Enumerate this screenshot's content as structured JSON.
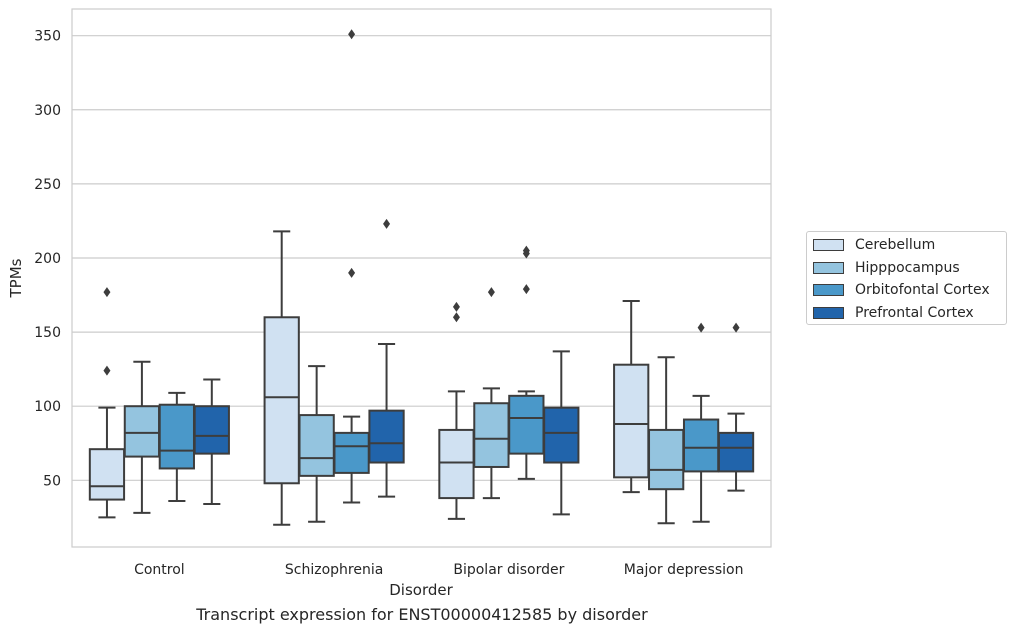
{
  "chart_data": {
    "type": "box",
    "title": "",
    "caption": "Transcript expression for ENST00000412585 by disorder",
    "xlabel": "Disorder",
    "ylabel": "TPMs",
    "ylim": [
      5,
      368
    ],
    "yticks": [
      50,
      100,
      150,
      200,
      250,
      300,
      350
    ],
    "grid": true,
    "legend_position": "right",
    "categories": [
      "Control",
      "Schizophrenia",
      "Bipolar disorder",
      "Major depression"
    ],
    "series": [
      {
        "name": "Cerebellum",
        "color": "#d0e1f2",
        "boxes": [
          {
            "whisker_low": 25,
            "q1": 37,
            "median": 46,
            "q3": 71,
            "whisker_high": 99,
            "outliers": [
              124,
              177
            ]
          },
          {
            "whisker_low": 20,
            "q1": 48,
            "median": 106,
            "q3": 160,
            "whisker_high": 218,
            "outliers": []
          },
          {
            "whisker_low": 24,
            "q1": 38,
            "median": 62,
            "q3": 84,
            "whisker_high": 110,
            "outliers": [
              160,
              167
            ]
          },
          {
            "whisker_low": 42,
            "q1": 52,
            "median": 88,
            "q3": 128,
            "whisker_high": 171,
            "outliers": []
          }
        ]
      },
      {
        "name": "Hipppocampus",
        "color": "#94c4df",
        "boxes": [
          {
            "whisker_low": 28,
            "q1": 66,
            "median": 82,
            "q3": 100,
            "whisker_high": 130,
            "outliers": []
          },
          {
            "whisker_low": 22,
            "q1": 53,
            "median": 65,
            "q3": 94,
            "whisker_high": 127,
            "outliers": []
          },
          {
            "whisker_low": 38,
            "q1": 59,
            "median": 78,
            "q3": 102,
            "whisker_high": 112,
            "outliers": [
              177
            ]
          },
          {
            "whisker_low": 21,
            "q1": 44,
            "median": 57,
            "q3": 84,
            "whisker_high": 133,
            "outliers": []
          }
        ]
      },
      {
        "name": "Orbitofontal Cortex",
        "color": "#4a98c9",
        "boxes": [
          {
            "whisker_low": 36,
            "q1": 58,
            "median": 70,
            "q3": 101,
            "whisker_high": 109,
            "outliers": []
          },
          {
            "whisker_low": 35,
            "q1": 55,
            "median": 73,
            "q3": 82,
            "whisker_high": 93,
            "outliers": [
              190,
              351
            ]
          },
          {
            "whisker_low": 51,
            "q1": 68,
            "median": 92,
            "q3": 107,
            "whisker_high": 110,
            "outliers": [
              179,
              203,
              205
            ]
          },
          {
            "whisker_low": 22,
            "q1": 56,
            "median": 72,
            "q3": 91,
            "whisker_high": 107,
            "outliers": [
              153
            ]
          }
        ]
      },
      {
        "name": "Prefrontal Cortex",
        "color": "#2164ab",
        "boxes": [
          {
            "whisker_low": 34,
            "q1": 68,
            "median": 80,
            "q3": 100,
            "whisker_high": 118,
            "outliers": []
          },
          {
            "whisker_low": 39,
            "q1": 62,
            "median": 75,
            "q3": 97,
            "whisker_high": 142,
            "outliers": [
              223
            ]
          },
          {
            "whisker_low": 27,
            "q1": 62,
            "median": 82,
            "q3": 99,
            "whisker_high": 137,
            "outliers": []
          },
          {
            "whisker_low": 43,
            "q1": 56,
            "median": 72,
            "q3": 82,
            "whisker_high": 95,
            "outliers": [
              153
            ]
          }
        ]
      }
    ]
  }
}
